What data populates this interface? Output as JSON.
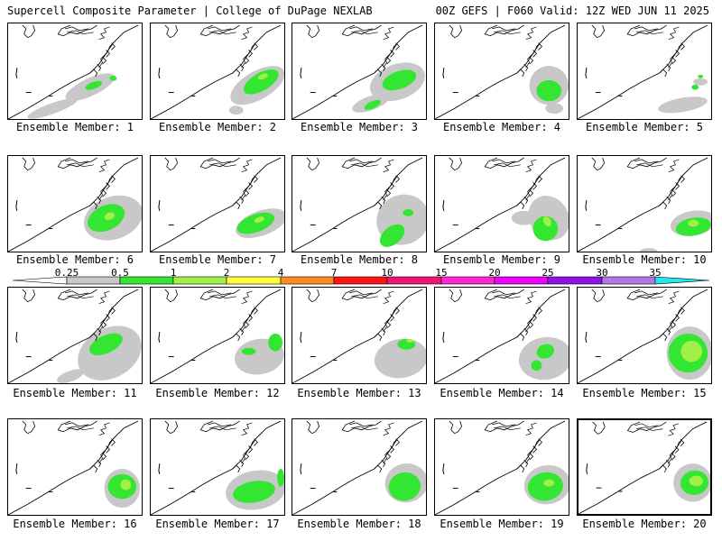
{
  "header": {
    "left": "Supercell Composite Parameter | College of DuPage NEXLAB",
    "right": "00Z GEFS | F060 Valid: 12Z WED JUN 11 2025"
  },
  "legend": {
    "labels": [
      "0.25",
      "0.5",
      "1",
      "2",
      "4",
      "7",
      "10",
      "15",
      "20",
      "25",
      "30",
      "35"
    ],
    "colors": [
      "#ffffff",
      "#c8c8c8",
      "#32e632",
      "#a0f046",
      "#ffff3c",
      "#ff8c1e",
      "#ff1414",
      "#f01478",
      "#ff28d2",
      "#f000ff",
      "#8c14e6",
      "#b478e6",
      "#28e6f0"
    ]
  },
  "colors": {
    "light_gray": "#c8c8c8",
    "green": "#32e632",
    "light_green": "#a0f046"
  },
  "members": [
    {
      "label": "Ensemble Member: 1"
    },
    {
      "label": "Ensemble Member: 2"
    },
    {
      "label": "Ensemble Member: 3"
    },
    {
      "label": "Ensemble Member: 4"
    },
    {
      "label": "Ensemble Member: 5"
    },
    {
      "label": "Ensemble Member: 6"
    },
    {
      "label": "Ensemble Member: 7"
    },
    {
      "label": "Ensemble Member: 8"
    },
    {
      "label": "Ensemble Member: 9"
    },
    {
      "label": "Ensemble Member: 10"
    },
    {
      "label": "Ensemble Member: 11"
    },
    {
      "label": "Ensemble Member: 12"
    },
    {
      "label": "Ensemble Member: 13"
    },
    {
      "label": "Ensemble Member: 14"
    },
    {
      "label": "Ensemble Member: 15"
    },
    {
      "label": "Ensemble Member: 16"
    },
    {
      "label": "Ensemble Member: 17"
    },
    {
      "label": "Ensemble Member: 18"
    },
    {
      "label": "Ensemble Member: 19"
    },
    {
      "label": "Ensemble Member: 20"
    }
  ]
}
